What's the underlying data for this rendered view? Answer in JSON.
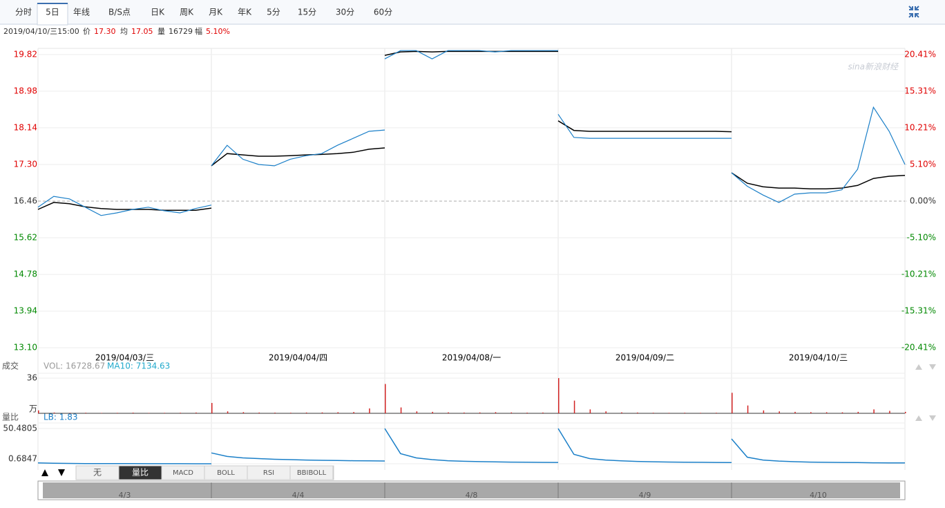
{
  "toolbar": {
    "tabs": [
      "分时",
      "5日",
      "年线",
      "B/S点",
      "日K",
      "周K",
      "月K",
      "年K",
      "5分",
      "15分",
      "30分",
      "60分"
    ],
    "active": 1
  },
  "info": {
    "time": "2019/04/10/三15:00",
    "items": [
      {
        "label": "价",
        "value": "17.30"
      },
      {
        "label": "均",
        "value": "17.05"
      },
      {
        "label": "量",
        "value": "16729"
      },
      {
        "label": "幅",
        "value": "5.10%"
      }
    ]
  },
  "watermark": "sina新浪财经",
  "chart_data": {
    "type": "line",
    "ylim": [
      12.96,
      19.96
    ],
    "yticks": [
      19.82,
      18.98,
      18.14,
      {
        "value": 17.3,
        "label": "17.30"
      },
      16.46,
      15.62,
      14.78,
      13.94,
      {
        "value": 13.1,
        "label": "13.10"
      }
    ],
    "y2lim": [
      -21.26,
      21.26
    ],
    "y2ticks": [
      {
        "value": 20.41,
        "label": "20.41%"
      },
      {
        "value": 15.31,
        "label": "15.31%"
      },
      {
        "value": 10.21,
        "label": "10.21%"
      },
      {
        "value": 5.1,
        "label": "5.10%"
      },
      {
        "value": 0,
        "label": "0.00%"
      },
      {
        "value": -5.1,
        "label": "-5.10%"
      },
      {
        "value": -10.21,
        "label": "-10.21%"
      },
      {
        "value": -15.31,
        "label": "-15.31%"
      },
      {
        "value": -20.41,
        "label": "-20.41%"
      }
    ],
    "price_color": "#1a7fc8",
    "avg_color": "#000000",
    "up_color": "#e00000",
    "down_color": "#008800",
    "days": [
      {
        "label": "2019/04/03/三",
        "nav_label": "4/3",
        "price": [
          16.32,
          16.57,
          16.51,
          16.32,
          16.13,
          16.19,
          16.27,
          16.32,
          16.24,
          16.19,
          16.29,
          16.37
        ],
        "avg": [
          16.27,
          16.43,
          16.4,
          16.33,
          16.29,
          16.27,
          16.27,
          16.27,
          16.25,
          16.25,
          16.25,
          16.3
        ],
        "volume": [
          3,
          0.8,
          0.5,
          0.6,
          0.4,
          0.5,
          0.7,
          0.4,
          0.5,
          0.6,
          0.8,
          1.5
        ],
        "lb": [
          2,
          1.5,
          1.2,
          1,
          0.95,
          0.9,
          0.85,
          0.8,
          0.78,
          0.75,
          0.72,
          0.7
        ]
      },
      {
        "label": "2019/04/04/四",
        "nav_label": "4/4",
        "price": [
          17.27,
          17.74,
          17.42,
          17.3,
          17.27,
          17.42,
          17.5,
          17.55,
          17.74,
          17.9,
          18.06,
          18.09
        ],
        "avg": [
          17.27,
          17.55,
          17.52,
          17.49,
          17.49,
          17.5,
          17.52,
          17.53,
          17.55,
          17.58,
          17.65,
          17.68
        ],
        "volume": [
          10.6,
          2,
          1.2,
          0.8,
          0.7,
          0.6,
          0.8,
          0.9,
          1.1,
          1.3,
          5,
          1.8
        ],
        "lb": [
          16,
          11,
          9,
          8,
          7,
          6.5,
          6,
          5.6,
          5.3,
          5,
          4.8,
          4.6
        ]
      },
      {
        "label": "2019/04/08/一",
        "nav_label": "4/8",
        "price": [
          19.72,
          19.91,
          19.91,
          19.72,
          19.91,
          19.91,
          19.91,
          19.88,
          19.91,
          19.91,
          19.91,
          19.91
        ],
        "avg": [
          19.8,
          19.88,
          19.89,
          19.88,
          19.89,
          19.89,
          19.89,
          19.89,
          19.89,
          19.89,
          19.89,
          19.89
        ],
        "volume": [
          30,
          6,
          2,
          1.5,
          1,
          0.8,
          0.9,
          1.2,
          0.9,
          0.7,
          0.8,
          0.9
        ],
        "lb": [
          50.4805,
          15,
          9,
          6.5,
          5,
          4.2,
          3.7,
          3.3,
          3,
          2.8,
          2.6,
          2.5
        ]
      },
      {
        "label": "2019/04/09/二",
        "nav_label": "4/9",
        "price": [
          18.45,
          17.92,
          17.9,
          17.9,
          17.9,
          17.9,
          17.9,
          17.9,
          17.9,
          17.9,
          17.9,
          17.9
        ],
        "avg": [
          18.3,
          18.08,
          18.06,
          18.06,
          18.06,
          18.06,
          18.06,
          18.06,
          18.06,
          18.06,
          18.06,
          18.05
        ],
        "volume": [
          36,
          13,
          4,
          2,
          1,
          0.8,
          0.6,
          0.5,
          0.6,
          0.5,
          0.6,
          0.8
        ],
        "lb": [
          50.4805,
          14,
          8,
          6,
          4.8,
          4,
          3.5,
          3.1,
          2.9,
          2.7,
          2.5,
          2.4
        ]
      },
      {
        "label": "2019/04/10/三",
        "nav_label": "4/10",
        "price": [
          17.11,
          16.8,
          16.6,
          16.43,
          16.62,
          16.65,
          16.65,
          16.72,
          17.19,
          18.61,
          18.06,
          17.3
        ],
        "avg": [
          17.11,
          16.87,
          16.79,
          16.76,
          16.76,
          16.74,
          16.74,
          16.76,
          16.82,
          16.98,
          17.03,
          17.05
        ],
        "volume": [
          21,
          8,
          3,
          2,
          1.5,
          1.2,
          1.1,
          1,
          1.5,
          4,
          2.5,
          1.5
        ],
        "lb": [
          35.8,
          10,
          6,
          4.5,
          3.6,
          3,
          2.7,
          2.5,
          2.3,
          2.1,
          2,
          1.83
        ]
      }
    ],
    "volume_panel": {
      "title": "成交",
      "legend": [
        "VOL: 16728.67",
        "MA10: 7134.63"
      ],
      "legend_colors": [
        "#999999",
        "#22aacc"
      ],
      "ylim": [
        0,
        41
      ],
      "yticks": [
        36
      ],
      "unit": "万",
      "bar_color": "#d22222"
    },
    "lb_panel": {
      "title": "量比",
      "legend": "LB: 1.83",
      "ylim": [
        0.6847,
        50.4805
      ],
      "yticks": [
        50.4805,
        0.6847
      ],
      "line_color": "#1a7fc8"
    }
  },
  "bottom_tabs": {
    "tabs": [
      "无",
      "量比",
      "MACD",
      "BOLL",
      "RSI",
      "BBIBOLL"
    ],
    "active": 1
  }
}
